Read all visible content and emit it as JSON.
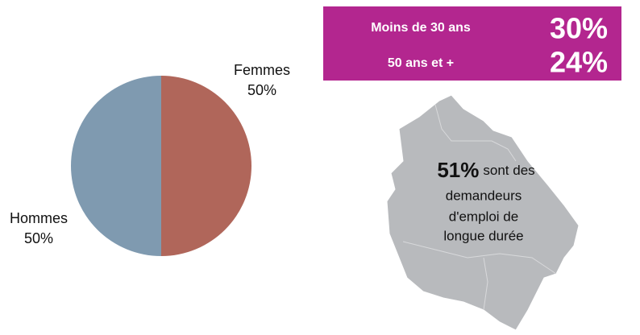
{
  "chart_data": {
    "type": "pie",
    "categories": [
      "Femmes",
      "Hommes"
    ],
    "values": [
      50,
      50
    ],
    "value_labels": [
      "50%",
      "50%"
    ],
    "colors": [
      "#b0665a",
      "#7f9ab0"
    ]
  },
  "age_box": {
    "rows": [
      {
        "label": "Moins de 30 ans",
        "value": "30%"
      },
      {
        "label": "50 ans et +",
        "value": "24%"
      }
    ]
  },
  "map_note": {
    "highlight": "51%",
    "lines": [
      "sont des",
      "demandeurs",
      "d'emploi de",
      "longue durée"
    ]
  }
}
